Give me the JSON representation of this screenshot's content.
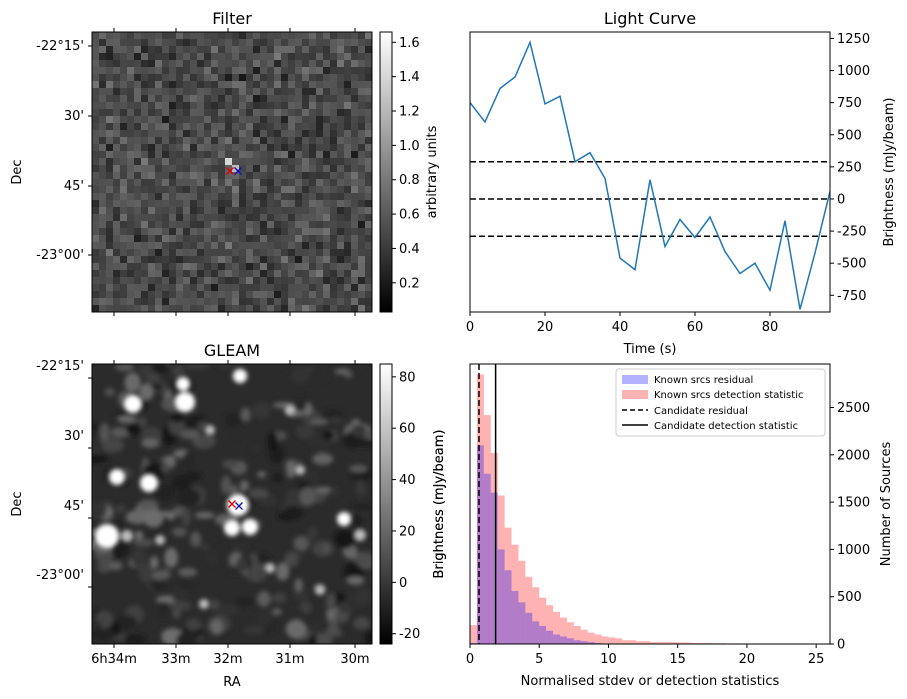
{
  "panels": {
    "filter": {
      "title": "Filter",
      "ylabel": "Dec",
      "y_ticks": [
        "-22°15'",
        "30'",
        "45'",
        "-23°00'"
      ],
      "colorbar": {
        "label": "arbitrary units",
        "ticks": [
          "0.2",
          "0.4",
          "0.6",
          "0.8",
          "1.0",
          "1.2",
          "1.4",
          "1.6"
        ],
        "range": [
          0.03,
          1.66
        ],
        "colormap": "gray"
      }
    },
    "gleam": {
      "title": "GLEAM",
      "ylabel": "Dec",
      "xlabel": "RA",
      "y_ticks": [
        "-22°15'",
        "30'",
        "45'",
        "-23°00'"
      ],
      "x_ticks": [
        "6h34m",
        "33m",
        "32m",
        "31m",
        "30m"
      ],
      "colorbar": {
        "label": "Brightness (mJy/beam)",
        "ticks": [
          "-20",
          "0",
          "20",
          "40",
          "60",
          "80"
        ],
        "range": [
          -24,
          85
        ],
        "colormap": "gray"
      }
    },
    "markers": {
      "red": "#e00000",
      "blue": "#1010c0"
    }
  },
  "chart_data": [
    {
      "type": "line",
      "title": "Light Curve",
      "xlabel": "Time (s)",
      "ylabel": "Brightness (mJy/beam)",
      "xlim": [
        0,
        96
      ],
      "ylim": [
        -880,
        1300
      ],
      "x_ticks": [
        0,
        20,
        40,
        60,
        80
      ],
      "y_ticks": [
        -750,
        -500,
        -250,
        0,
        250,
        500,
        750,
        1000,
        1250
      ],
      "color": "#1f77b4",
      "series": [
        {
          "x": [
            0,
            4,
            8,
            12,
            16,
            20,
            24,
            28,
            32,
            36,
            40,
            44,
            48,
            52,
            56,
            60,
            64,
            68,
            72,
            76,
            80,
            84,
            88,
            92,
            96
          ],
          "values": [
            750,
            600,
            860,
            950,
            1220,
            740,
            800,
            290,
            360,
            160,
            -460,
            -550,
            150,
            -370,
            -160,
            -300,
            -140,
            -410,
            -580,
            -500,
            -710,
            -170,
            -860,
            -420,
            60
          ]
        }
      ],
      "hlines": [
        290,
        0,
        -290
      ]
    },
    {
      "type": "bar",
      "xlabel": "Normalised stdev or detection statistics",
      "ylabel": "Number of Sources",
      "ylabel_left": "Brightness (mJy/beam)",
      "xlim": [
        0,
        26
      ],
      "ylim": [
        0,
        2960
      ],
      "x_ticks": [
        0,
        5,
        10,
        15,
        20,
        25
      ],
      "y_ticks": [
        0,
        500,
        1000,
        1500,
        2000,
        2500
      ],
      "bin_width": 0.5,
      "legend_position": "top-right",
      "series": [
        {
          "name": "Known srcs residual",
          "color": "#0000ff",
          "bin_starts": [
            0,
            0.5,
            1,
            1.5,
            2,
            2.5,
            3,
            3.5,
            4,
            4.5,
            5,
            5.5,
            6,
            6.5,
            7,
            7.5,
            8,
            8.5,
            9
          ],
          "values": [
            10,
            2100,
            1800,
            1600,
            1000,
            780,
            560,
            440,
            330,
            240,
            190,
            140,
            100,
            80,
            60,
            40,
            30,
            20,
            10
          ]
        },
        {
          "name": "Known srcs detection statistic",
          "color": "#ff0000",
          "bin_starts": [
            0,
            0.5,
            1,
            1.5,
            2,
            2.5,
            3,
            3.5,
            4,
            4.5,
            5,
            5.5,
            6,
            6.5,
            7,
            7.5,
            8,
            8.5,
            9,
            9.5,
            10,
            10.5,
            11,
            11.5,
            12,
            12.5,
            13,
            13.5,
            14,
            14.5,
            15,
            15.5,
            16,
            16.5,
            17,
            17.5,
            18,
            18.5,
            19,
            19.5,
            20,
            20.5,
            21,
            21.5,
            22,
            22.5,
            23,
            23.5,
            24,
            24.5,
            25
          ],
          "values": [
            200,
            2850,
            2420,
            2020,
            1570,
            1230,
            1050,
            880,
            710,
            600,
            490,
            410,
            340,
            280,
            230,
            190,
            150,
            120,
            100,
            80,
            70,
            60,
            40,
            40,
            30,
            30,
            20,
            20,
            20,
            20,
            15,
            15,
            10,
            10,
            10,
            8,
            8,
            6,
            6,
            5,
            5,
            4,
            4,
            3,
            3,
            3,
            2,
            2,
            2,
            2,
            2
          ]
        }
      ],
      "vlines": [
        {
          "name": "Candidate residual",
          "x": 0.65,
          "style": "dashed"
        },
        {
          "name": "Candidate detection statistic",
          "x": 1.85,
          "style": "solid"
        }
      ]
    }
  ]
}
